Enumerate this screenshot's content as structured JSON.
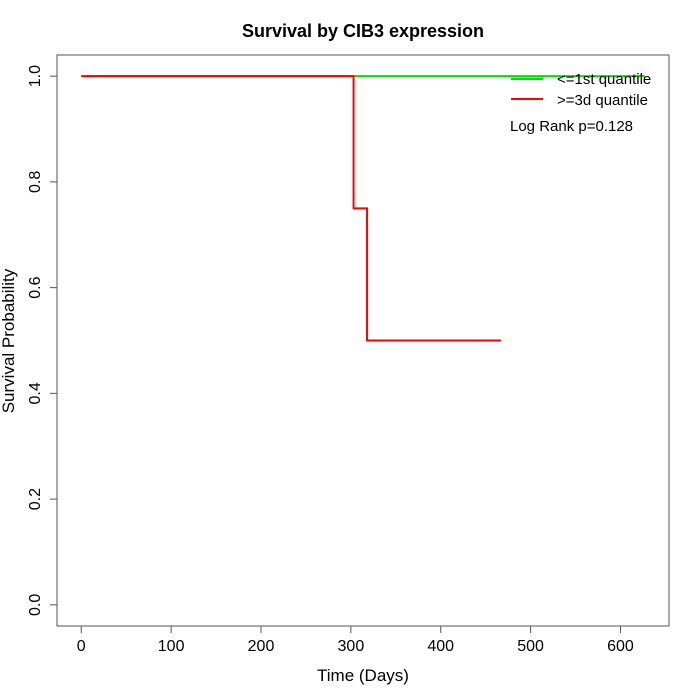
{
  "chart_data": {
    "type": "line",
    "title": "Survival by CIB3 expression",
    "xlabel": "Time (Days)",
    "ylabel": "Survival Probability",
    "xlim": [
      -27,
      654
    ],
    "ylim": [
      -0.04,
      1.04
    ],
    "x_ticks": [
      0,
      100,
      200,
      300,
      400,
      500,
      600
    ],
    "x_tick_labels": [
      "0",
      "100",
      "200",
      "300",
      "400",
      "500",
      "600"
    ],
    "y_ticks": [
      0.0,
      0.2,
      0.4,
      0.6,
      0.8,
      1.0
    ],
    "y_tick_labels": [
      "0.0",
      "0.2",
      "0.4",
      "0.6",
      "0.8",
      "1.0"
    ],
    "grid": false,
    "legend_position": "top-right",
    "annotation": "Log Rank p=0.128",
    "series": [
      {
        "name": "<=1st quantile",
        "color": "#00e000",
        "step": true,
        "x": [
          0,
          627
        ],
        "y": [
          1.0,
          1.0
        ]
      },
      {
        "name": ">=3d quantile",
        "color": "#ff0000",
        "step": true,
        "x": [
          0,
          303,
          318,
          467
        ],
        "y": [
          1.0,
          0.75,
          0.5,
          0.5
        ]
      }
    ]
  }
}
